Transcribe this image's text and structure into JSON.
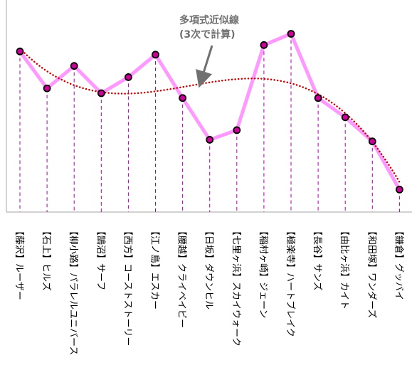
{
  "chart_data": {
    "type": "line",
    "categories": [
      "【藤沢】ルーザー",
      "【石上】ヒルズ",
      "【柳小路】パラレルユニバース",
      "【鵠沼】サーフ",
      "【西方】コーストストーリー",
      "【江ノ島】エスカー",
      "【腰越】クライベイビー",
      "【日坂】ダウンヒル",
      "【七里ヶ浜】スカイウォーク",
      "【稲村ヶ崎】ジェーン",
      "【極楽寺】ハートブレイク",
      "【長谷】サンズ",
      "【由比ヶ浜】カイト",
      "【和田塚】ワンダーズ",
      "【鎌倉】グッバイ"
    ],
    "series": [
      {
        "values": [
          100,
          77,
          91,
          74,
          84,
          98,
          71,
          45,
          51,
          104,
          111,
          71,
          59,
          44,
          14
        ],
        "color": "#ff99ff",
        "marker_fill": "#cc0099",
        "marker_edge": "#000000"
      }
    ],
    "trendline": {
      "type": "polynomial",
      "order": 3,
      "color": "#cc0000",
      "style": "dotted"
    },
    "annotation": {
      "line1": "多項式近似線",
      "line2": "(3次で計算)",
      "color": "#707070"
    },
    "ylim": [
      0,
      125
    ],
    "grid": false,
    "drop_lines": true,
    "drop_line_color": "#aa00aa"
  }
}
